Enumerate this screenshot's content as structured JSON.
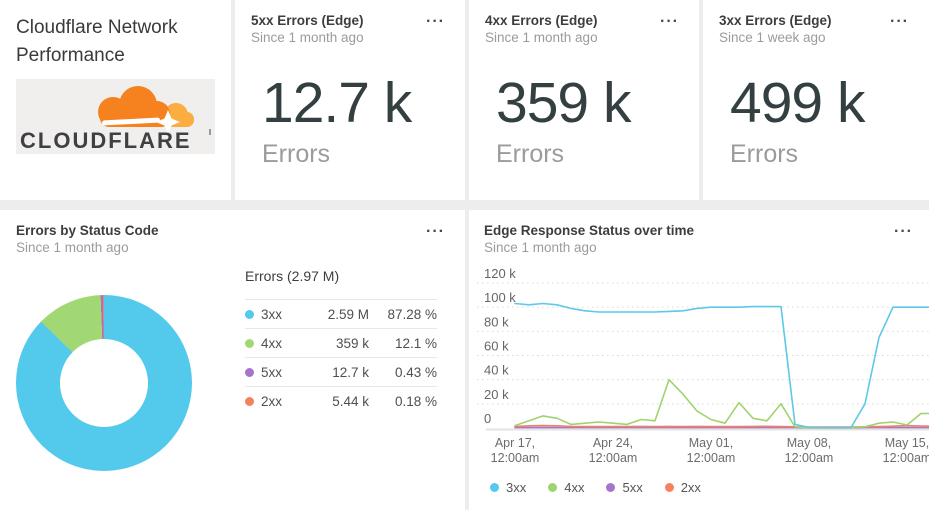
{
  "icons": {
    "menu": "···"
  },
  "header": {
    "title": "Cloudflare Network Performance",
    "logo_text": "CLOUDFLARE",
    "logo_orange": "#f6821f",
    "logo_light_orange": "#fbad41",
    "logo_text_color": "#3f4043"
  },
  "stat_cards": [
    {
      "title": "5xx Errors (Edge)",
      "subtitle": "Since 1 month ago",
      "value": "12.7 k",
      "label": "Errors"
    },
    {
      "title": "4xx Errors (Edge)",
      "subtitle": "Since 1 month ago",
      "value": "359 k",
      "label": "Errors"
    },
    {
      "title": "3xx Errors (Edge)",
      "subtitle": "Since 1 week ago",
      "value": "499 k",
      "label": "Errors"
    }
  ],
  "donut_card": {
    "title": "Errors by Status Code",
    "subtitle": "Since 1 month ago"
  },
  "line_card": {
    "title": "Edge Response Status over time",
    "subtitle": "Since 1 month ago"
  },
  "chart_data": [
    {
      "type": "pie",
      "title": "Errors by Status Code",
      "total_label": "Errors (2.97 M)",
      "slices": [
        {
          "label": "3xx",
          "value": "2.59 M",
          "pct": "87.28 %",
          "pct_num": 87.28,
          "color": "#53c9ec"
        },
        {
          "label": "4xx",
          "value": "359 k",
          "pct": "12.1 %",
          "pct_num": 12.1,
          "color": "#a2d873"
        },
        {
          "label": "5xx",
          "value": "12.7 k",
          "pct": "0.43 %",
          "pct_num": 0.43,
          "color": "#a575cc"
        },
        {
          "label": "2xx",
          "value": "5.44 k",
          "pct": "0.18 %",
          "pct_num": 0.18,
          "color": "#f4825d"
        }
      ]
    },
    {
      "type": "line",
      "title": "Edge Response Status over time",
      "x_unit": "days since Apr 17 12:00am",
      "y_unit": "thousands of errors",
      "ylim": [
        0,
        120
      ],
      "grid": "dotted horizontal",
      "legend_position": "bottom-left",
      "y_ticks": [
        {
          "v": 0,
          "label": "0"
        },
        {
          "v": 20,
          "label": "20 k"
        },
        {
          "v": 40,
          "label": "40 k"
        },
        {
          "v": 60,
          "label": "60 k"
        },
        {
          "v": 80,
          "label": "80 k"
        },
        {
          "v": 100,
          "label": "100 k"
        },
        {
          "v": 120,
          "label": "120 k"
        }
      ],
      "x_ticks": [
        {
          "day": 0,
          "line1": "Apr 17,",
          "line2": "12:00am"
        },
        {
          "day": 7,
          "line1": "Apr 24,",
          "line2": "12:00am"
        },
        {
          "day": 14,
          "line1": "May 01,",
          "line2": "12:00am"
        },
        {
          "day": 21,
          "line1": "May 08,",
          "line2": "12:00am"
        },
        {
          "day": 28,
          "line1": "May 15,",
          "line2": "12:00am"
        }
      ],
      "series": [
        {
          "name": "5xx",
          "color": "#a575cc",
          "values": [
            0.3,
            0.3,
            0.3,
            0.3,
            0.3,
            0.3,
            0.3,
            0.3,
            0.3,
            0.3,
            0.3,
            0.3,
            0.3,
            0.3,
            0.3,
            0.3,
            0.3,
            0.3,
            0.3,
            0.3,
            0.3,
            0.2,
            0.2,
            0.2,
            0.2,
            0.3,
            0.3,
            0.3,
            0.3,
            0.3
          ]
        },
        {
          "name": "2xx",
          "color": "#ef8168",
          "values": [
            1.2,
            1.8,
            2,
            1.8,
            1.3,
            1.2,
            1.2,
            1.2,
            1.2,
            1.3,
            1.2,
            1.3,
            1.2,
            1.3,
            1.2,
            1.2,
            1.2,
            1.3,
            1.4,
            1.2,
            1,
            0.8,
            0.8,
            0.8,
            0.8,
            1,
            1.2,
            1.5,
            2,
            1.6
          ]
        },
        {
          "name": "4xx",
          "color": "#9fd46c",
          "values": [
            2,
            6,
            10,
            8,
            3,
            4,
            5,
            4,
            3,
            7,
            6,
            40,
            28,
            14,
            7,
            4,
            21,
            8,
            6,
            20,
            1,
            0.2,
            0.2,
            0.2,
            0.2,
            1,
            4,
            5,
            2.5,
            12
          ]
        },
        {
          "name": "3xx",
          "color": "#5cc9e8",
          "values": [
            103,
            102,
            103,
            102,
            99,
            97,
            96,
            96,
            96,
            96,
            96,
            96.5,
            97,
            99,
            100,
            100,
            100,
            100.5,
            100.5,
            100.5,
            3,
            0.5,
            0.3,
            0.3,
            0.3,
            20,
            75,
            100,
            100,
            100
          ]
        }
      ],
      "legend": [
        {
          "label": "3xx",
          "color": "#53c9ec"
        },
        {
          "label": "4xx",
          "color": "#9fd46c"
        },
        {
          "label": "5xx",
          "color": "#a575cc"
        },
        {
          "label": "2xx",
          "color": "#f4825d"
        }
      ]
    }
  ]
}
